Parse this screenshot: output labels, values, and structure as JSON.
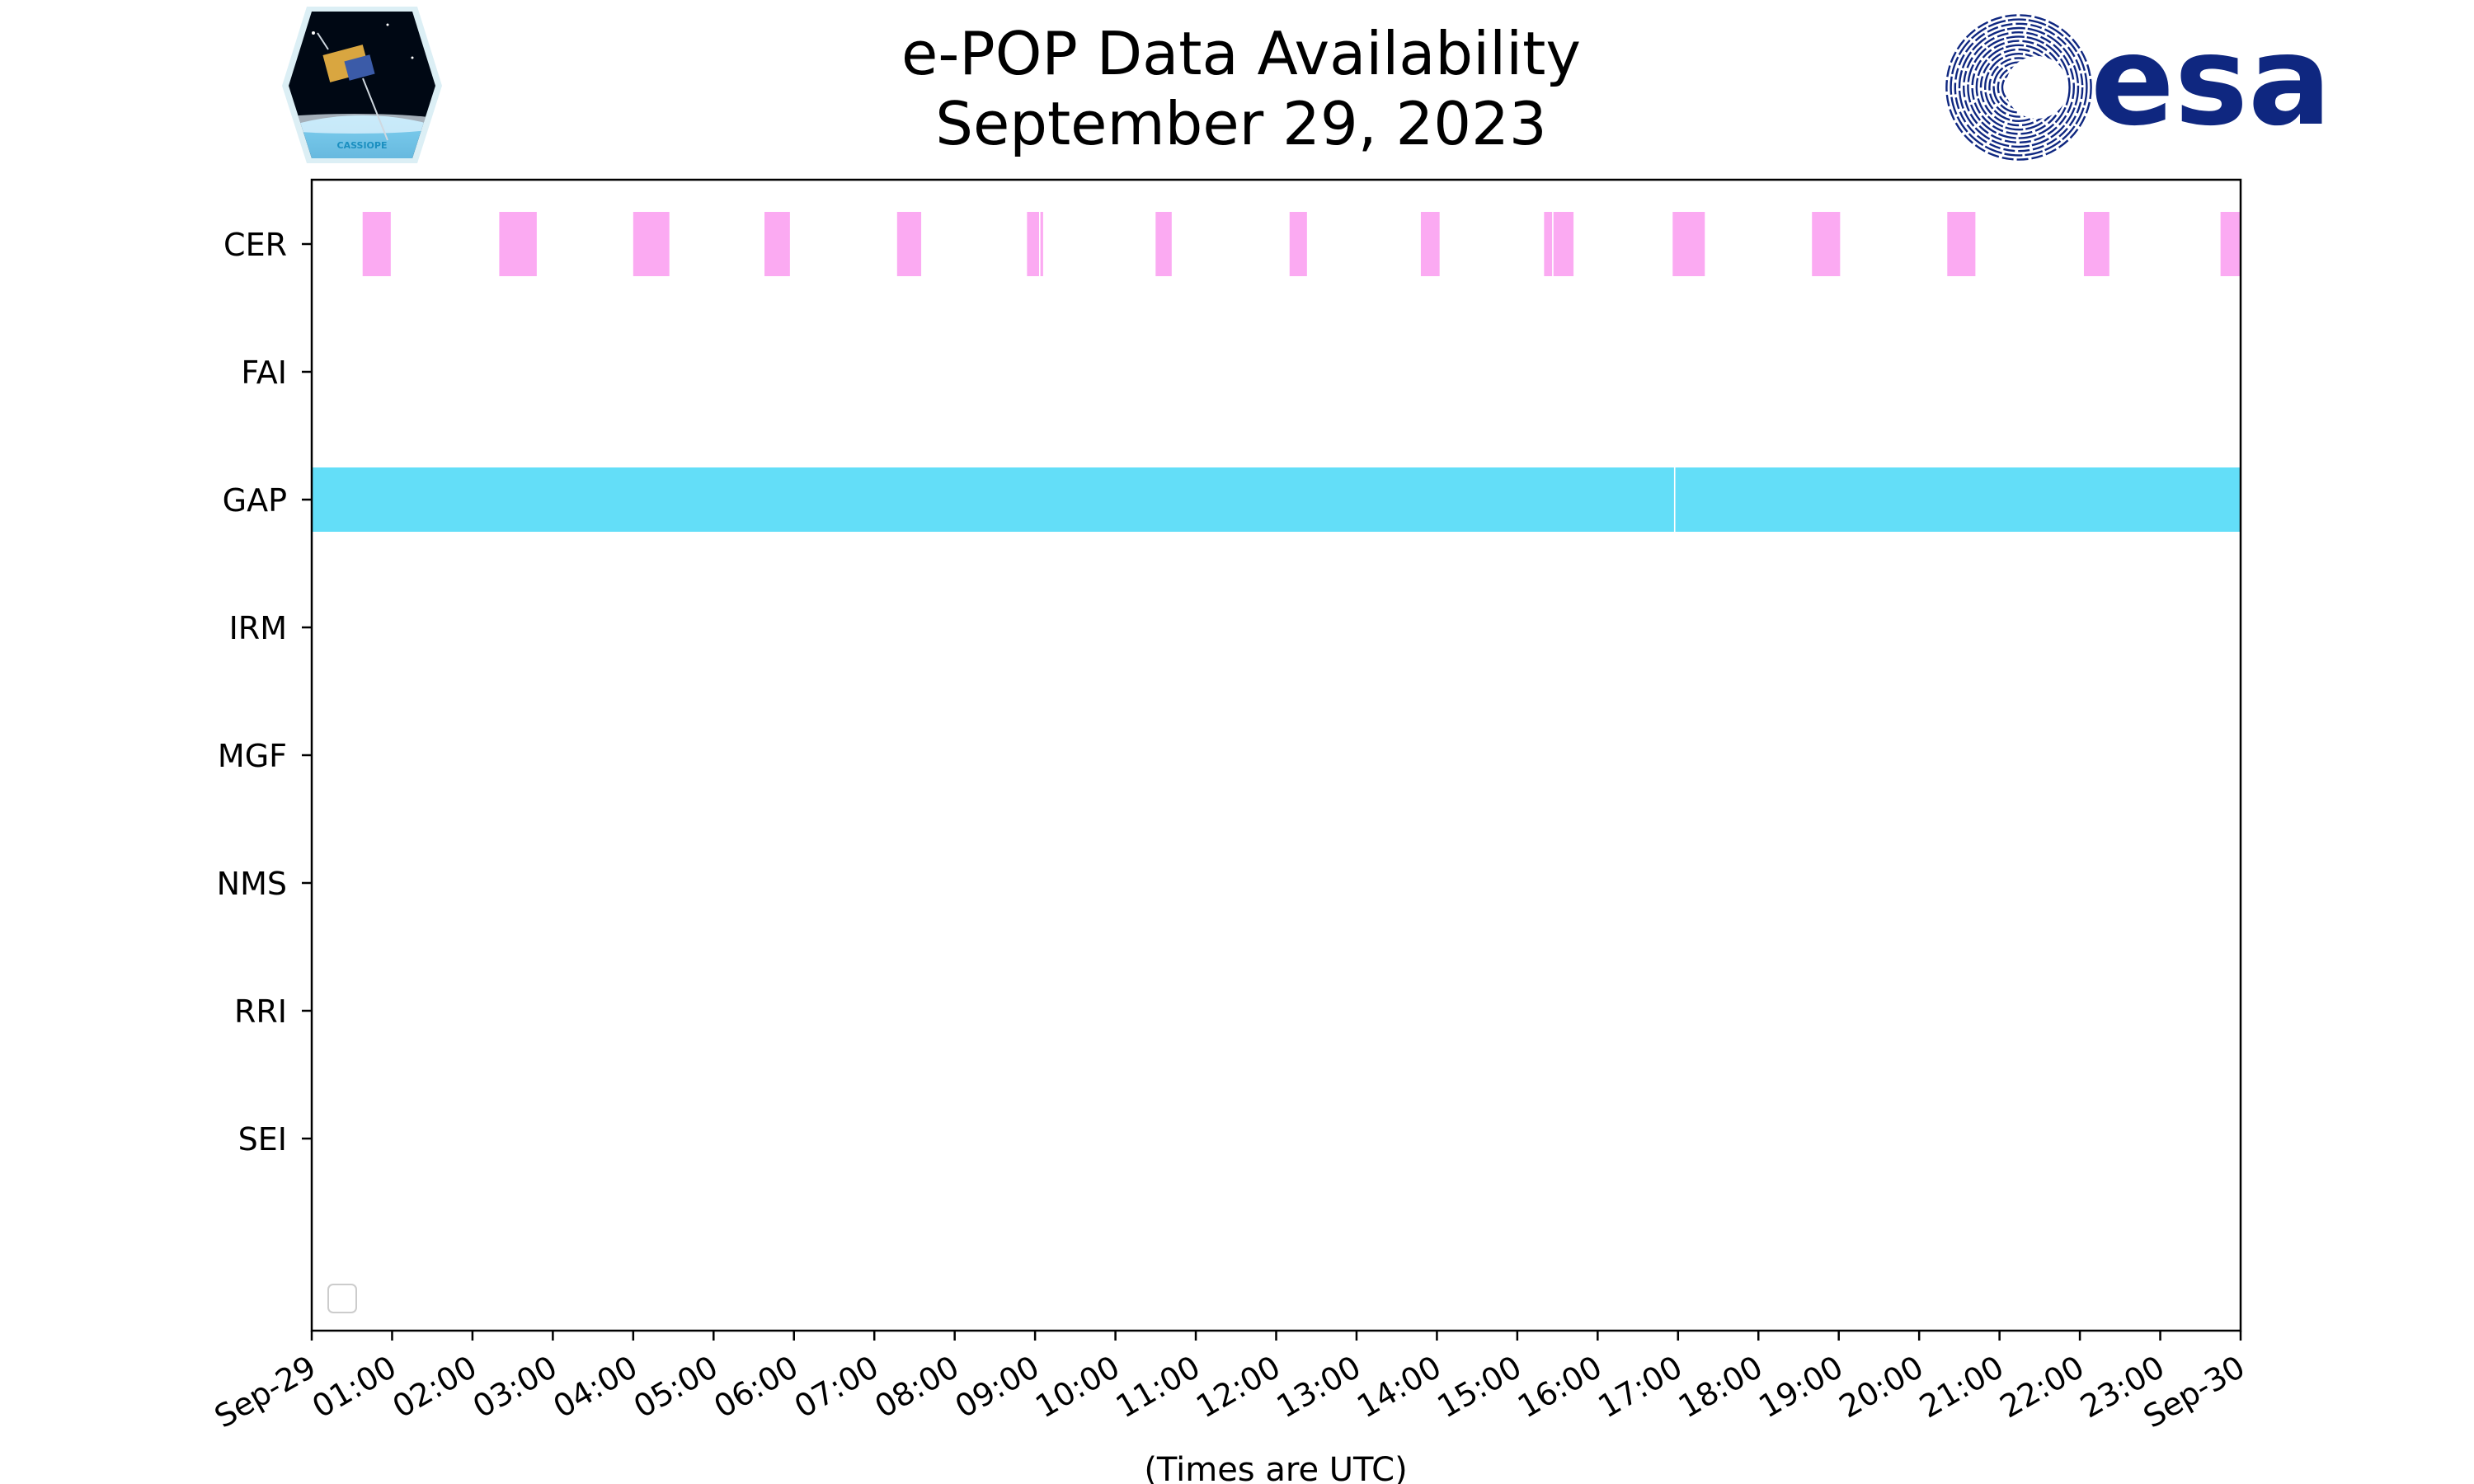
{
  "colors": {
    "cer": "#fbaaf2",
    "gap": "#63def8",
    "esa_blue": "#0f2780",
    "axis": "#000000"
  },
  "logos": {
    "left": {
      "icon": "cassiope-satellite-icon",
      "text": "CASSIOPE"
    },
    "right": {
      "icon": "esa-swirl-icon",
      "text": "esa"
    }
  },
  "chart_data": {
    "type": "timeline",
    "title_line1": "e-POP Data Availability",
    "title_line2": "September 29, 2023",
    "xlabel": "(Times are UTC)",
    "ylabel": "",
    "xlim": [
      "2023-09-29 00:00",
      "2023-09-30 00:00"
    ],
    "grid": false,
    "legend": "lower-left (empty)",
    "x_ticks": [
      "Sep-29",
      "01:00",
      "02:00",
      "03:00",
      "04:00",
      "05:00",
      "06:00",
      "07:00",
      "08:00",
      "09:00",
      "10:00",
      "11:00",
      "12:00",
      "13:00",
      "14:00",
      "15:00",
      "16:00",
      "17:00",
      "18:00",
      "19:00",
      "20:00",
      "21:00",
      "22:00",
      "23:00",
      "Sep-30"
    ],
    "categories": [
      "CER",
      "FAI",
      "GAP",
      "IRM",
      "MGF",
      "NMS",
      "RRI",
      "SEI"
    ],
    "series": [
      {
        "name": "CER",
        "color": "#fbaaf2",
        "intervals": [
          [
            "00:38",
            "00:59"
          ],
          [
            "02:20",
            "02:48"
          ],
          [
            "04:00",
            "04:27"
          ],
          [
            "05:38",
            "05:57"
          ],
          [
            "07:17",
            "07:35"
          ],
          [
            "08:54",
            "09:03"
          ],
          [
            "09:04",
            "09:06"
          ],
          [
            "10:30",
            "10:42"
          ],
          [
            "12:10",
            "12:23"
          ],
          [
            "13:48",
            "14:02"
          ],
          [
            "15:20",
            "15:26"
          ],
          [
            "15:27",
            "15:42"
          ],
          [
            "16:56",
            "17:20"
          ],
          [
            "18:40",
            "19:01"
          ],
          [
            "20:21",
            "20:42"
          ],
          [
            "22:03",
            "22:22"
          ],
          [
            "23:45",
            "23:59"
          ]
        ]
      },
      {
        "name": "FAI",
        "intervals": []
      },
      {
        "name": "GAP",
        "color": "#63def8",
        "intervals": [
          [
            "00:00",
            "16:57"
          ],
          [
            "16:58",
            "23:59"
          ]
        ]
      },
      {
        "name": "IRM",
        "intervals": []
      },
      {
        "name": "MGF",
        "intervals": []
      },
      {
        "name": "NMS",
        "intervals": []
      },
      {
        "name": "RRI",
        "intervals": []
      },
      {
        "name": "SEI",
        "intervals": []
      }
    ]
  }
}
